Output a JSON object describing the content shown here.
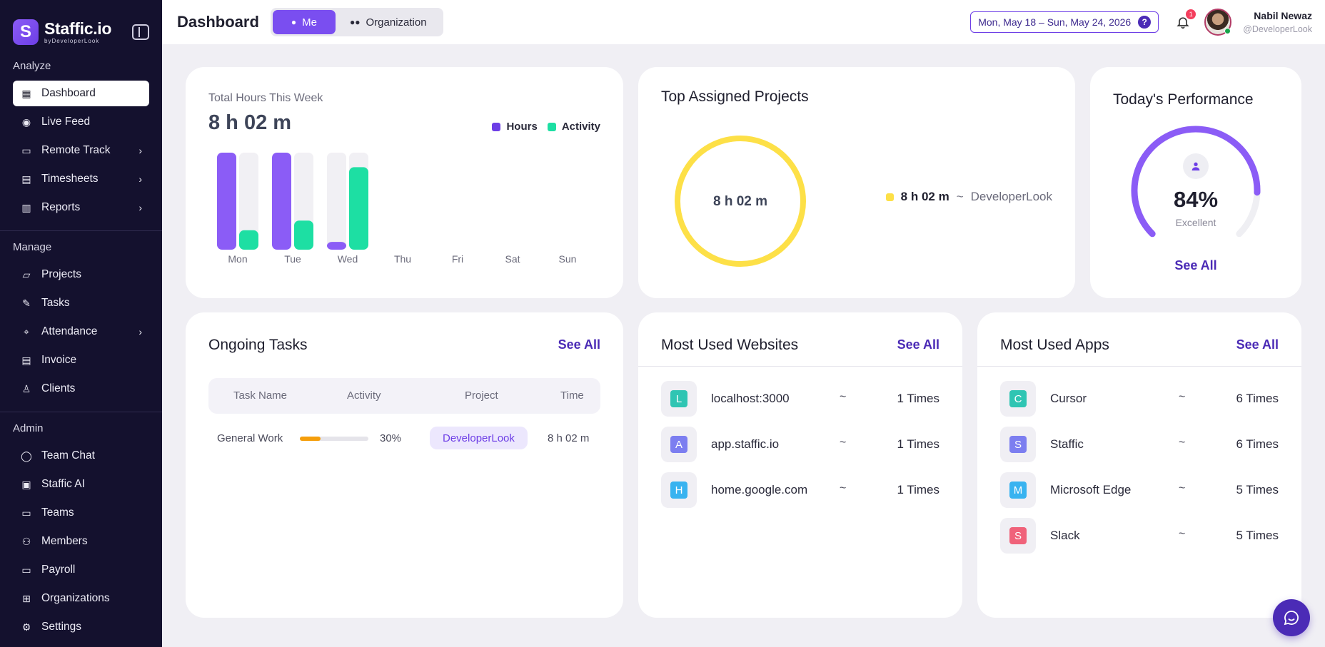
{
  "brand": {
    "name": "Staffic.io",
    "byline": "byDeveloperLook",
    "logo_letter": "S"
  },
  "sidebar": {
    "sections": [
      {
        "label": "Analyze",
        "items": [
          {
            "label": "Dashboard",
            "icon": "grid-icon",
            "active": true,
            "chevron": false
          },
          {
            "label": "Live Feed",
            "icon": "record-icon",
            "chevron": false
          },
          {
            "label": "Remote Track",
            "icon": "monitor-icon",
            "chevron": true
          },
          {
            "label": "Timesheets",
            "icon": "calendar-icon",
            "chevron": true
          },
          {
            "label": "Reports",
            "icon": "report-icon",
            "chevron": true
          }
        ]
      },
      {
        "label": "Manage",
        "items": [
          {
            "label": "Projects",
            "icon": "folder-icon",
            "chevron": false
          },
          {
            "label": "Tasks",
            "icon": "tasks-icon",
            "chevron": false
          },
          {
            "label": "Attendance",
            "icon": "attendance-icon",
            "chevron": true
          },
          {
            "label": "Invoice",
            "icon": "invoice-icon",
            "chevron": false
          },
          {
            "label": "Clients",
            "icon": "user-icon",
            "chevron": false
          }
        ]
      },
      {
        "label": "Admin",
        "items": [
          {
            "label": "Team Chat",
            "icon": "chat-icon",
            "chevron": false
          },
          {
            "label": "Staffic AI",
            "icon": "robot-icon",
            "chevron": false
          },
          {
            "label": "Teams",
            "icon": "teams-icon",
            "chevron": false
          },
          {
            "label": "Members",
            "icon": "members-icon",
            "chevron": false
          },
          {
            "label": "Payroll",
            "icon": "wallet-icon",
            "chevron": false
          },
          {
            "label": "Organizations",
            "icon": "org-icon",
            "chevron": false
          },
          {
            "label": "Settings",
            "icon": "gear-icon",
            "chevron": false
          }
        ]
      }
    ]
  },
  "header": {
    "title": "Dashboard",
    "toggle": {
      "me": "Me",
      "organization": "Organization"
    },
    "date_range": "Mon, May 18 – Sun, May 24, 2026",
    "help": "?",
    "notification_count": "1",
    "user": {
      "name": "Nabil Newaz",
      "handle": "@DeveloperLook"
    }
  },
  "hours_card": {
    "label": "Total Hours This Week",
    "value": "8 h 02 m",
    "legend": [
      "Hours",
      "Activity"
    ]
  },
  "chart_data": {
    "type": "bar",
    "categories": [
      "Mon",
      "Tue",
      "Wed",
      "Thu",
      "Fri",
      "Sat",
      "Sun"
    ],
    "series": [
      {
        "name": "Hours",
        "values": [
          1.0,
          1.0,
          0.08,
          0,
          0,
          0,
          0
        ]
      },
      {
        "name": "Activity",
        "values": [
          0.2,
          0.3,
          0.85,
          0,
          0,
          0,
          0
        ]
      }
    ],
    "ylim": [
      0,
      1
    ],
    "legend": "top-right",
    "colors": {
      "Hours": "#8b5cf6",
      "Activity": "#1ddfa3"
    }
  },
  "projects_card": {
    "title": "Top Assigned Projects",
    "center": "8 h 02 m",
    "items": [
      {
        "value": "8 h 02 m",
        "separator": "~",
        "name": "DeveloperLook",
        "color": "#fde047"
      }
    ]
  },
  "performance": {
    "title": "Today's Performance",
    "percent": "84%",
    "percent_value": 84,
    "label": "Excellent",
    "see_all": "See All"
  },
  "tasks": {
    "title": "Ongoing Tasks",
    "see_all": "See All",
    "columns": [
      "Task Name",
      "Activity",
      "Project",
      "Time"
    ],
    "rows": [
      {
        "name": "General Work",
        "activity": "30%",
        "activity_value": 30,
        "project": "DeveloperLook",
        "time": "8 h 02 m"
      }
    ]
  },
  "websites": {
    "title": "Most Used Websites",
    "see_all": "See All",
    "items": [
      {
        "letter": "L",
        "name": "localhost:3000",
        "sep": "~",
        "count": "1 Times",
        "color": "#2fc5b3"
      },
      {
        "letter": "A",
        "name": "app.staffic.io",
        "sep": "~",
        "count": "1 Times",
        "color": "#7c7ef0"
      },
      {
        "letter": "H",
        "name": "home.google.com",
        "sep": "~",
        "count": "1 Times",
        "color": "#38b3f0"
      }
    ]
  },
  "apps": {
    "title": "Most Used Apps",
    "see_all": "See All",
    "items": [
      {
        "letter": "C",
        "name": "Cursor",
        "sep": "~",
        "count": "6 Times",
        "color": "#2fc5b3"
      },
      {
        "letter": "S",
        "name": "Staffic",
        "sep": "~",
        "count": "6 Times",
        "color": "#7c7ef0"
      },
      {
        "letter": "M",
        "name": "Microsoft Edge",
        "sep": "~",
        "count": "5 Times",
        "color": "#38b3f0"
      },
      {
        "letter": "S",
        "name": "Slack",
        "sep": "~",
        "count": "5 Times",
        "color": "#f0627a"
      }
    ]
  }
}
